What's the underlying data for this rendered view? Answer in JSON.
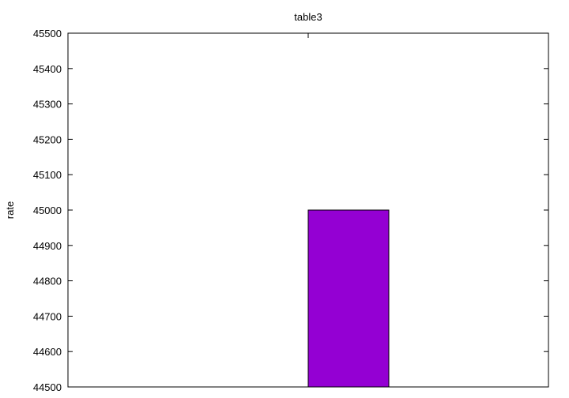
{
  "chart_data": {
    "type": "bar",
    "title": "table3",
    "xlabel": "",
    "ylabel": "rate",
    "categories": [
      ""
    ],
    "values": [
      45000
    ],
    "ylim": [
      44500,
      45500
    ],
    "yticks": [
      44500,
      44600,
      44700,
      44800,
      44900,
      45000,
      45100,
      45200,
      45300,
      45400,
      45500
    ],
    "grid": false,
    "legend": "none",
    "bar_color": "#9400D3"
  }
}
